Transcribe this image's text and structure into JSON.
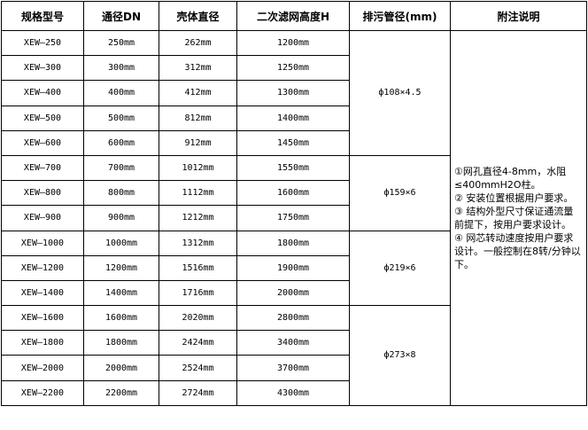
{
  "headers": [
    "规格型号",
    "通径DN",
    "壳体直径",
    "二次滤网高度H",
    "排污管径(mm)",
    "附注说明"
  ],
  "rows": [
    [
      "XEW—250",
      "250mm",
      "262mm",
      "1200mm"
    ],
    [
      "XEW—300",
      "300mm",
      "312mm",
      "1250mm"
    ],
    [
      "XEW—400",
      "400mm",
      "412mm",
      "1300mm"
    ],
    [
      "XEW—500",
      "500mm",
      "812mm",
      "1400mm"
    ],
    [
      "XEW—600",
      "600mm",
      "912mm",
      "1450mm"
    ],
    [
      "XEW—700",
      "700mm",
      "1012mm",
      "1550mm"
    ],
    [
      "XEW—800",
      "800mm",
      "1112mm",
      "1600mm"
    ],
    [
      "XEW—900",
      "900mm",
      "1212mm",
      "1750mm"
    ],
    [
      "XEW—1000",
      "1000mm",
      "1312mm",
      "1800mm"
    ],
    [
      "XEW—1200",
      "1200mm",
      "1516mm",
      "1900mm"
    ],
    [
      "XEW—1400",
      "1400mm",
      "1716mm",
      "2000mm"
    ],
    [
      "XEW—1600",
      "1600mm",
      "2020mm",
      "2800mm"
    ],
    [
      "XEW—1800",
      "1800mm",
      "2424mm",
      "3400mm"
    ],
    [
      "XEW—2000",
      "2000mm",
      "2524mm",
      "3700mm"
    ],
    [
      "XEW—2200",
      "2200mm",
      "2724mm",
      "4300mm"
    ]
  ],
  "drain_groups": [
    {
      "label": "ф108×4.5",
      "span": 5
    },
    {
      "label": "ф159×6",
      "span": 3
    },
    {
      "label": "ф219×6",
      "span": 3
    },
    {
      "label": "ф273×8",
      "span": 4
    }
  ],
  "notes": [
    "①网孔直径4-8mm，水阻≤400mmH2O柱。",
    "② 安装位置根据用户要求。",
    "③ 结构外型尺寸保证通流量前提下，按用户要求设计。",
    "④ 网芯转动速度按用户要求设计。一般控制在8转/分钟以下。"
  ]
}
